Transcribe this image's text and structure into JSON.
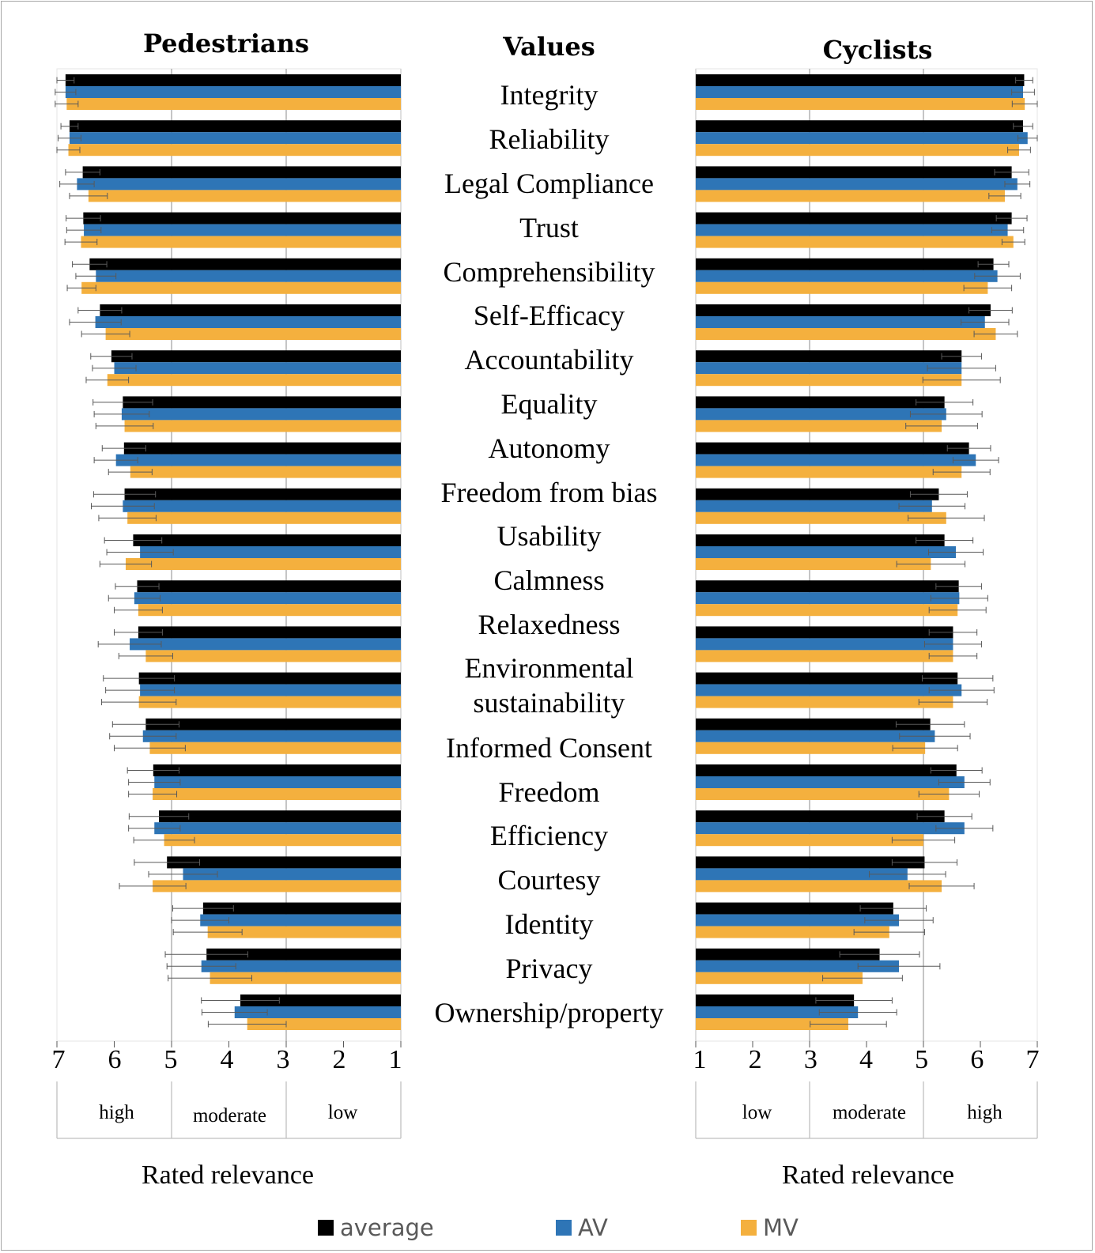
{
  "colors": {
    "average": "#000000",
    "AV": "#2e75b6",
    "MV": "#f4b03e",
    "grid": "#a6a6a6"
  },
  "headers": {
    "pedestrians": "Pedestrians",
    "values": "Values",
    "cyclists": "Cyclists"
  },
  "axis": {
    "ticks_left": [
      "7",
      "6",
      "5",
      "4",
      "3",
      "2",
      "1"
    ],
    "ticks_right": [
      "1",
      "2",
      "3",
      "4",
      "5",
      "6",
      "7"
    ],
    "bands_left": [
      "high",
      "moderate",
      "low"
    ],
    "bands_right": [
      "low",
      "moderate",
      "high"
    ],
    "title_left": "Rated relevance",
    "title_right": "Rated relevance"
  },
  "legend": [
    {
      "label": "average",
      "color_key": "average"
    },
    {
      "label": "AV",
      "color_key": "AV"
    },
    {
      "label": "MV",
      "color_key": "MV"
    }
  ],
  "chart_data": [
    {
      "type": "bar",
      "orientation": "horizontal",
      "title": "Pedestrians",
      "xlabel": "Rated relevance",
      "xlim": [
        7,
        1
      ],
      "reversed": true,
      "grid": true,
      "bands": [
        {
          "label": "high",
          "range": [
            7,
            5
          ]
        },
        {
          "label": "moderate",
          "range": [
            5,
            3
          ]
        },
        {
          "label": "low",
          "range": [
            3,
            1
          ]
        }
      ],
      "categories": [
        "Integrity",
        "Reliability",
        "Legal Compliance",
        "Trust",
        "Comprehensibility",
        "Self-Efficacy",
        "Accountability",
        "Equality",
        "Autonomy",
        "Freedom from bias",
        "Usability",
        "Calmness",
        "Relaxedness",
        "Environmental sustainability",
        "Informed Consent",
        "Freedom",
        "Efficiency",
        "Courtesy",
        "Identity",
        "Privacy",
        "Ownership/property"
      ],
      "series": [
        {
          "name": "average",
          "values": [
            6.85,
            6.78,
            6.55,
            6.54,
            6.43,
            6.25,
            6.05,
            5.85,
            5.83,
            5.82,
            5.67,
            5.6,
            5.58,
            5.57,
            5.45,
            5.32,
            5.22,
            5.08,
            4.45,
            4.39,
            3.8
          ],
          "errors": [
            0.15,
            0.15,
            0.3,
            0.3,
            0.3,
            0.38,
            0.36,
            0.52,
            0.38,
            0.54,
            0.5,
            0.38,
            0.42,
            0.62,
            0.58,
            0.45,
            0.52,
            0.57,
            0.53,
            0.72,
            0.68
          ]
        },
        {
          "name": "AV",
          "values": [
            6.85,
            6.78,
            6.65,
            6.53,
            6.32,
            6.33,
            6.0,
            5.87,
            5.97,
            5.85,
            5.55,
            5.65,
            5.73,
            5.55,
            5.5,
            5.3,
            5.3,
            4.8,
            4.5,
            4.48,
            3.9
          ],
          "errors": [
            0.18,
            0.2,
            0.3,
            0.3,
            0.35,
            0.45,
            0.38,
            0.48,
            0.38,
            0.55,
            0.58,
            0.45,
            0.55,
            0.6,
            0.58,
            0.45,
            0.45,
            0.6,
            0.5,
            0.6,
            0.57
          ]
        },
        {
          "name": "MV",
          "values": [
            6.83,
            6.8,
            6.45,
            6.58,
            6.57,
            6.15,
            6.12,
            5.82,
            5.72,
            5.77,
            5.8,
            5.58,
            5.45,
            5.57,
            5.38,
            5.33,
            5.13,
            5.33,
            4.37,
            4.33,
            3.68
          ],
          "errors": [
            0.2,
            0.2,
            0.33,
            0.28,
            0.25,
            0.42,
            0.37,
            0.5,
            0.38,
            0.5,
            0.45,
            0.42,
            0.47,
            0.65,
            0.62,
            0.42,
            0.53,
            0.58,
            0.6,
            0.73,
            0.68
          ]
        }
      ]
    },
    {
      "type": "bar",
      "orientation": "horizontal",
      "title": "Cyclists",
      "xlabel": "Rated relevance",
      "xlim": [
        1,
        7
      ],
      "reversed": false,
      "grid": true,
      "bands": [
        {
          "label": "low",
          "range": [
            1,
            3
          ]
        },
        {
          "label": "moderate",
          "range": [
            3,
            5
          ]
        },
        {
          "label": "high",
          "range": [
            5,
            7
          ]
        }
      ],
      "categories": [
        "Integrity",
        "Reliability",
        "Legal Compliance",
        "Trust",
        "Comprehensibility",
        "Self-Efficacy",
        "Accountability",
        "Equality",
        "Autonomy",
        "Freedom from bias",
        "Usability",
        "Calmness",
        "Relaxedness",
        "Environmental sustainability",
        "Informed Consent",
        "Freedom",
        "Efficiency",
        "Courtesy",
        "Identity",
        "Privacy",
        "Ownership/property"
      ],
      "series": [
        {
          "name": "average",
          "values": [
            6.77,
            6.75,
            6.55,
            6.55,
            6.23,
            6.18,
            5.67,
            5.37,
            5.8,
            5.27,
            5.37,
            5.62,
            5.52,
            5.6,
            5.12,
            5.58,
            5.37,
            5.02,
            4.47,
            4.23,
            3.78
          ],
          "errors": [
            0.15,
            0.17,
            0.3,
            0.27,
            0.27,
            0.38,
            0.35,
            0.5,
            0.38,
            0.5,
            0.5,
            0.4,
            0.42,
            0.62,
            0.6,
            0.45,
            0.48,
            0.57,
            0.58,
            0.7,
            0.67
          ]
        },
        {
          "name": "AV",
          "values": [
            6.75,
            6.83,
            6.65,
            6.48,
            6.3,
            6.08,
            5.67,
            5.4,
            5.92,
            5.15,
            5.57,
            5.63,
            5.52,
            5.67,
            5.2,
            5.72,
            5.72,
            4.72,
            4.57,
            4.57,
            3.85
          ],
          "errors": [
            0.2,
            0.17,
            0.22,
            0.28,
            0.4,
            0.42,
            0.6,
            0.63,
            0.4,
            0.58,
            0.48,
            0.5,
            0.5,
            0.57,
            0.62,
            0.45,
            0.5,
            0.67,
            0.6,
            0.72,
            0.68
          ]
        },
        {
          "name": "MV",
          "values": [
            6.78,
            6.68,
            6.43,
            6.58,
            6.13,
            6.27,
            5.67,
            5.32,
            5.67,
            5.4,
            5.13,
            5.6,
            5.52,
            5.52,
            5.03,
            5.45,
            5.0,
            5.32,
            4.4,
            3.93,
            3.68
          ],
          "errors": [
            0.22,
            0.2,
            0.28,
            0.2,
            0.42,
            0.38,
            0.68,
            0.63,
            0.5,
            0.67,
            0.6,
            0.5,
            0.42,
            0.6,
            0.57,
            0.53,
            0.55,
            0.57,
            0.62,
            0.7,
            0.67
          ]
        }
      ]
    }
  ],
  "value_labels": [
    {
      "lines": [
        "Integrity"
      ]
    },
    {
      "lines": [
        "Reliability"
      ]
    },
    {
      "lines": [
        "Legal Compliance"
      ]
    },
    {
      "lines": [
        "Trust"
      ]
    },
    {
      "lines": [
        "Comprehensibility"
      ]
    },
    {
      "lines": [
        "Self-Efficacy"
      ]
    },
    {
      "lines": [
        "Accountability"
      ]
    },
    {
      "lines": [
        "Equality"
      ]
    },
    {
      "lines": [
        "Autonomy"
      ]
    },
    {
      "lines": [
        "Freedom from bias"
      ]
    },
    {
      "lines": [
        "Usability"
      ]
    },
    {
      "lines": [
        "Calmness"
      ]
    },
    {
      "lines": [
        "Relaxedness"
      ]
    },
    {
      "lines": [
        "Environmental",
        "sustainability"
      ]
    },
    {
      "lines": [
        "Informed Consent"
      ]
    },
    {
      "lines": [
        "Freedom"
      ]
    },
    {
      "lines": [
        "Efficiency"
      ]
    },
    {
      "lines": [
        "Courtesy"
      ]
    },
    {
      "lines": [
        "Identity"
      ]
    },
    {
      "lines": [
        "Privacy"
      ]
    },
    {
      "lines": [
        "Ownership/property"
      ]
    }
  ]
}
